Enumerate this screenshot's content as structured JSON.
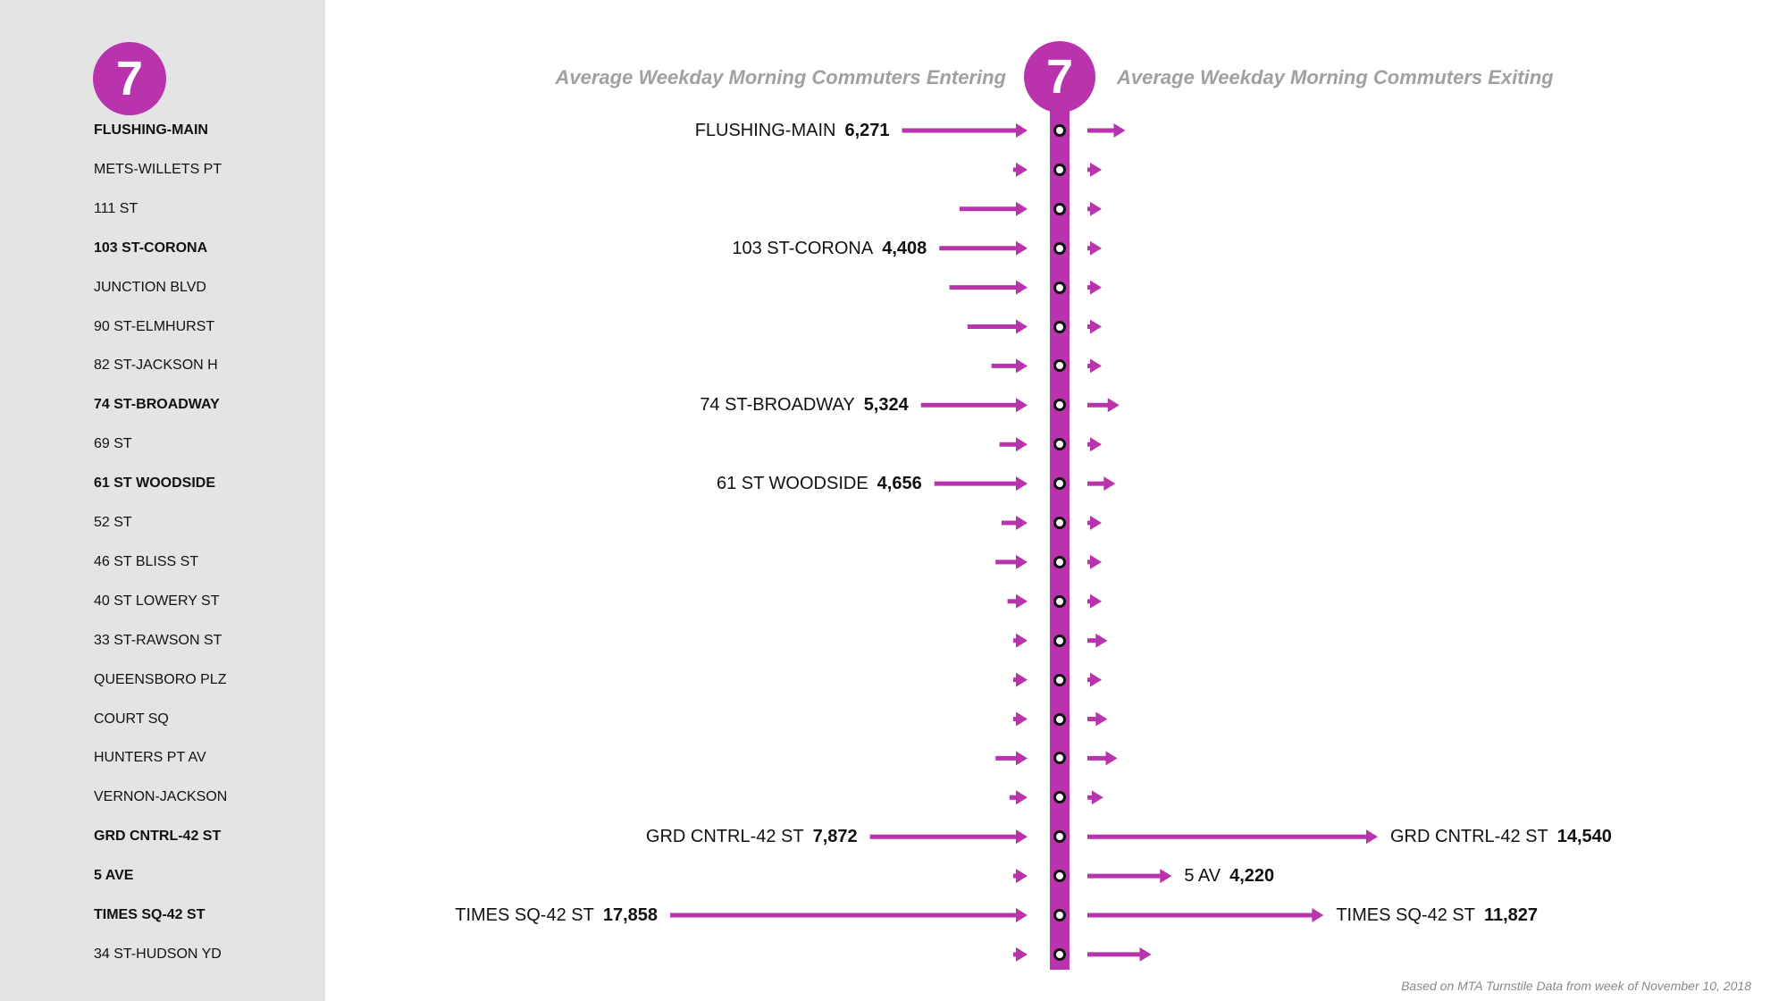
{
  "route": "7",
  "header_enter": "Average Weekday Morning Commuters Entering",
  "header_exit": "Average Weekday Morning Commuters Exiting",
  "source_note": "Based on MTA Turnstile Data from week of November 10, 2018",
  "colors": {
    "line": "#b933ad",
    "sidebar": "#e4e4e4",
    "header": "#a0a0a0"
  },
  "chart_data": {
    "type": "bar",
    "categories": [
      "FLUSHING-MAIN",
      "METS-WILLETS PT",
      "111 ST",
      "103 ST-CORONA",
      "JUNCTION BLVD",
      "90 ST-ELMHURST",
      "82 ST-JACKSON H",
      "74 ST-BROADWAY",
      "69 ST",
      "61 ST WOODSIDE",
      "52 ST",
      "46 ST BLISS ST",
      "40 ST LOWERY ST",
      "33 ST-RAWSON ST",
      "QUEENSBORO PLZ",
      "COURT SQ",
      "HUNTERS PT AV",
      "VERNON-JACKSON",
      "GRD CNTRL-42 ST",
      "5 AVE",
      "TIMES SQ-42 ST",
      "34 ST-HUDSON YD"
    ],
    "highlighted": [
      "FLUSHING-MAIN",
      "103 ST-CORONA",
      "74 ST-BROADWAY",
      "61 ST WOODSIDE",
      "GRD CNTRL-42 ST",
      "5 AVE",
      "TIMES SQ-42 ST"
    ],
    "series": [
      {
        "name": "Average Weekday Morning Commuters Entering",
        "values": [
          6271,
          500,
          3400,
          4408,
          3900,
          3000,
          1800,
          5324,
          1400,
          4656,
          1300,
          1600,
          1000,
          300,
          600,
          100,
          1600,
          900,
          7872,
          600,
          17858,
          400
        ]
      },
      {
        "name": "Average Weekday Morning Commuters Exiting",
        "values": [
          1900,
          400,
          500,
          700,
          700,
          400,
          600,
          1600,
          600,
          1400,
          400,
          600,
          600,
          1000,
          600,
          1000,
          1500,
          800,
          14540,
          4220,
          11827,
          3200
        ]
      }
    ],
    "labels_entering": [
      {
        "station": "FLUSHING-MAIN",
        "name": "FLUSHING-MAIN",
        "value": "6,271"
      },
      {
        "station": "103 ST-CORONA",
        "name": "103 ST-CORONA",
        "value": "4,408"
      },
      {
        "station": "74 ST-BROADWAY",
        "name": "74 ST-BROADWAY",
        "value": "5,324"
      },
      {
        "station": "61 ST WOODSIDE",
        "name": "61 ST WOODSIDE",
        "value": "4,656"
      },
      {
        "station": "GRD CNTRL-42 ST",
        "name": "GRD CNTRL-42 ST",
        "value": "7,872"
      },
      {
        "station": "TIMES SQ-42 ST",
        "name": "TIMES SQ-42 ST",
        "value": "17,858"
      }
    ],
    "labels_exiting": [
      {
        "station": "GRD CNTRL-42 ST",
        "name": "GRD CNTRL-42 ST",
        "value": "14,540"
      },
      {
        "station": "5 AVE",
        "name": "5 AV",
        "value": "4,220"
      },
      {
        "station": "TIMES SQ-42 ST",
        "name": "TIMES SQ-42 ST",
        "value": "11,827"
      }
    ]
  }
}
